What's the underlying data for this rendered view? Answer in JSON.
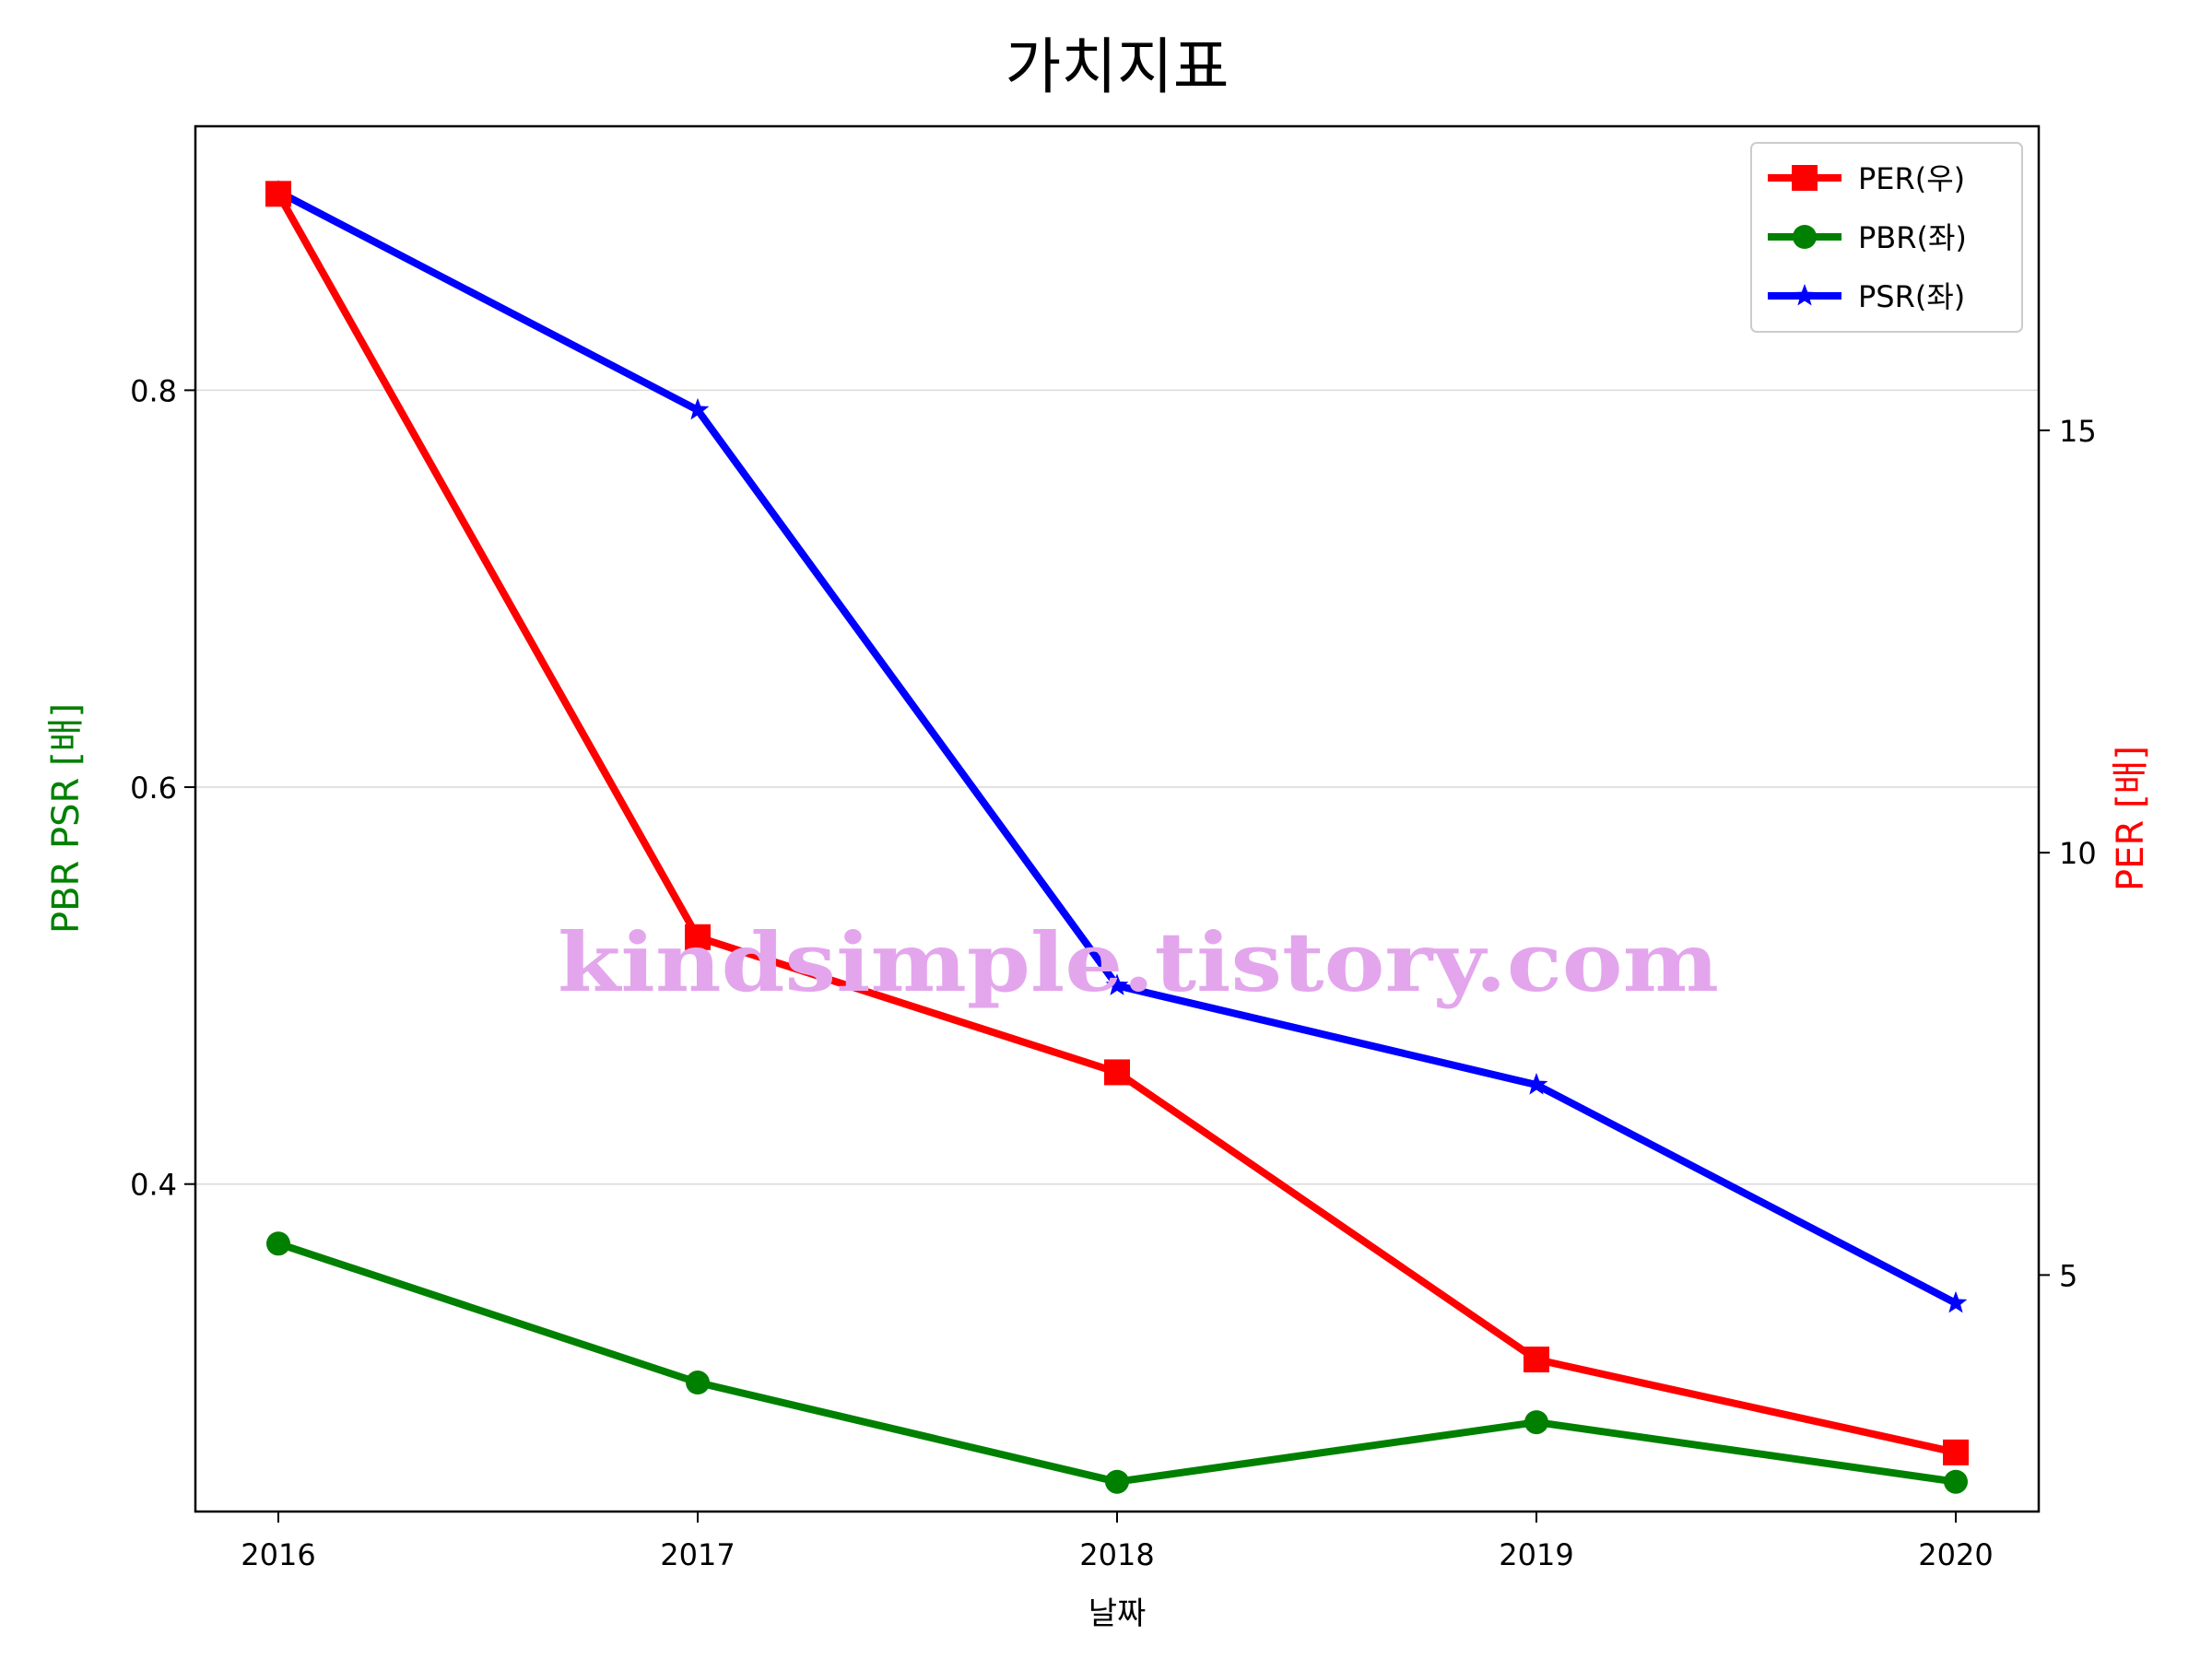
{
  "chart_data": {
    "type": "line",
    "title": "가치지표",
    "xlabel": "날짜",
    "ylabel_left": "PBR PSR [배]",
    "ylabel_right": "PER [배]",
    "categories": [
      "2016",
      "2017",
      "2018",
      "2019",
      "2020"
    ],
    "left_axis": {
      "ylim": [
        0.235,
        0.933
      ],
      "ticks": [
        0.4,
        0.6,
        0.8
      ],
      "tick_labels": [
        "0.4",
        "0.6",
        "0.8"
      ]
    },
    "right_axis": {
      "ylim": [
        2.2,
        18.6
      ],
      "ticks": [
        5,
        10,
        15
      ],
      "tick_labels": [
        "5",
        "10",
        "15"
      ]
    },
    "grid": "horizontal (left axis)",
    "legend_position": "top-right",
    "series": [
      {
        "name": "PER(우)",
        "axis": "right",
        "color": "#ff0000",
        "marker": "square",
        "values": [
          17.8,
          9.0,
          7.4,
          4.0,
          2.9
        ]
      },
      {
        "name": "PBR(좌)",
        "axis": "left",
        "color": "#008000",
        "marker": "circle",
        "values": [
          0.37,
          0.3,
          0.25,
          0.28,
          0.25
        ]
      },
      {
        "name": "PSR(좌)",
        "axis": "left",
        "color": "#0000ff",
        "marker": "star",
        "values": [
          0.9,
          0.79,
          0.5,
          0.45,
          0.34
        ]
      }
    ],
    "watermark": "kindsimple.tistory.com"
  }
}
